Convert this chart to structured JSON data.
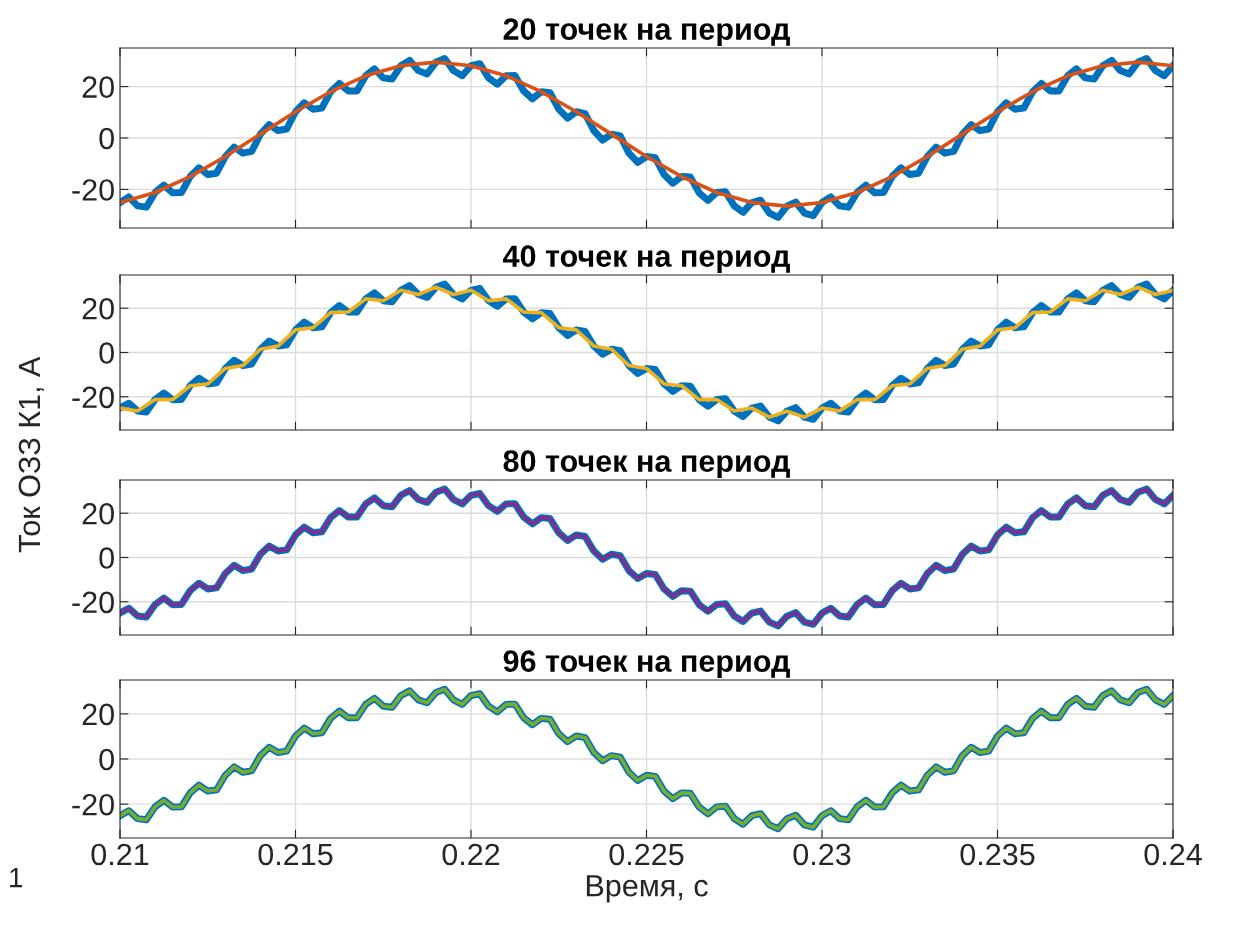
{
  "chart_data": [
    {
      "type": "line",
      "title": "20 точек на период",
      "xlim": [
        0.21,
        0.24
      ],
      "ylim": [
        -35,
        35
      ],
      "yticks": [
        -20,
        0,
        20
      ],
      "tick_labels": "y",
      "grid": true,
      "legend": false,
      "marker": "none",
      "line_style": "solid",
      "x": [
        0.21,
        0.21025,
        0.2105,
        0.21075,
        0.211,
        0.21125,
        0.2115,
        0.21175,
        0.212,
        0.21225,
        0.2125,
        0.21275,
        0.213,
        0.21325,
        0.2135,
        0.21375,
        0.214,
        0.21425,
        0.2145,
        0.21475,
        0.215,
        0.21525,
        0.2155,
        0.21575,
        0.216,
        0.21625,
        0.2165,
        0.21675,
        0.217,
        0.21725,
        0.2175,
        0.21775,
        0.218,
        0.21825,
        0.2185,
        0.21875,
        0.219,
        0.21925,
        0.2195,
        0.21975,
        0.22,
        0.22025,
        0.2205,
        0.22075,
        0.221,
        0.22125,
        0.2215,
        0.22175,
        0.222,
        0.22225,
        0.2225,
        0.22275,
        0.223,
        0.22325,
        0.2235,
        0.22375,
        0.224,
        0.22425,
        0.2245,
        0.22475,
        0.225,
        0.22525,
        0.2255,
        0.22575,
        0.226,
        0.22625,
        0.2265,
        0.22675,
        0.227,
        0.22725,
        0.2275,
        0.22775,
        0.228,
        0.22825,
        0.2285,
        0.22875,
        0.229,
        0.22925,
        0.2295,
        0.22975,
        0.23,
        0.23025,
        0.2305,
        0.23075,
        0.231,
        0.23125,
        0.2315,
        0.23175,
        0.232,
        0.23225,
        0.2325,
        0.23275,
        0.233,
        0.23325,
        0.2335,
        0.23375,
        0.234,
        0.23425,
        0.2345,
        0.23475,
        0.235,
        0.23525,
        0.2355,
        0.23575,
        0.236,
        0.23625,
        0.2365,
        0.23675,
        0.237,
        0.23725,
        0.2375,
        0.23775,
        0.238,
        0.23825,
        0.2385,
        0.23875,
        0.239,
        0.23925,
        0.2395,
        0.23975,
        0.24
      ],
      "series": [
        {
          "color": "#0072bd",
          "values": [
            -25.1,
            -22.9,
            -26.4,
            -26.9,
            -21.2,
            -18.3,
            -21.3,
            -21.2,
            -15,
            -11.6,
            -14.2,
            -13.7,
            -7.2,
            -3.5,
            -5.9,
            -5.2,
            1.5,
            5.2,
            2.9,
            3.5,
            10.2,
            13.7,
            11.2,
            11.6,
            18,
            21.2,
            18.3,
            18.3,
            24.2,
            26.9,
            23.4,
            22.9,
            28.1,
            30.2,
            26.2,
            24.9,
            29.5,
            30.9,
            26.2,
            24.2,
            28.1,
            28.9,
            23.4,
            20.9,
            24.2,
            24.3,
            18.3,
            15.2,
            18,
            17.6,
            11.2,
            7.7,
            10.2,
            9.5,
            2.9,
            -0.8,
            1.5,
            0.8,
            -5.9,
            -9.5,
            -7.2,
            -7.7,
            -14.2,
            -17.6,
            -15,
            -15.2,
            -21.3,
            -24.3,
            -21.2,
            -20.9,
            -26.4,
            -28.9,
            -25.1,
            -24.2,
            -29.2,
            -30.9,
            -26.5,
            -24.9,
            -29.2,
            -30.2,
            -25.1,
            -22.9,
            -26.4,
            -26.9,
            -21.2,
            -18.3,
            -21.3,
            -21.2,
            -15,
            -11.6,
            -14.2,
            -13.7,
            -7.2,
            -3.5,
            -5.9,
            -5.2,
            1.5,
            5.2,
            2.9,
            3.5,
            10.2,
            13.7,
            11.2,
            11.6,
            18,
            21.2,
            18.3,
            18.3,
            24.2,
            26.9,
            23.4,
            22.9,
            28.1,
            30.2,
            26.2,
            24.9,
            29.5,
            30.9,
            26.2,
            24.2,
            28.1
          ]
        },
        {
          "color": "#d95319",
          "x": [
            0.21,
            0.211,
            0.212,
            0.213,
            0.214,
            0.215,
            0.216,
            0.217,
            0.218,
            0.219,
            0.22,
            0.221,
            0.222,
            0.223,
            0.224,
            0.225,
            0.226,
            0.227,
            0.228,
            0.229,
            0.23,
            0.231,
            0.232,
            0.233,
            0.234,
            0.235,
            0.236,
            0.237,
            0.238,
            0.239,
            0.24
          ],
          "values": [
            -25.1,
            -21.2,
            -15,
            -7.2,
            1.5,
            10.2,
            18,
            24.2,
            28.1,
            29.5,
            28.1,
            24.2,
            18,
            10.2,
            1.5,
            -7.2,
            -15,
            -21.2,
            -25.1,
            -26.5,
            -25.1,
            -21.2,
            -15,
            -7.2,
            1.5,
            10.2,
            18,
            24.2,
            28.1,
            29.5,
            28.1
          ]
        }
      ]
    },
    {
      "type": "line",
      "title": "40 точек на период",
      "ylabel": "Ток ОЗЗ К1, А",
      "xlim": [
        0.21,
        0.24
      ],
      "ylim": [
        -35,
        35
      ],
      "yticks": [
        -20,
        0,
        20
      ],
      "tick_labels": "y",
      "grid": true,
      "legend": false,
      "marker": "none",
      "line_style": "solid",
      "x": [
        0.21,
        0.21025,
        0.2105,
        0.21075,
        0.211,
        0.21125,
        0.2115,
        0.21175,
        0.212,
        0.21225,
        0.2125,
        0.21275,
        0.213,
        0.21325,
        0.2135,
        0.21375,
        0.214,
        0.21425,
        0.2145,
        0.21475,
        0.215,
        0.21525,
        0.2155,
        0.21575,
        0.216,
        0.21625,
        0.2165,
        0.21675,
        0.217,
        0.21725,
        0.2175,
        0.21775,
        0.218,
        0.21825,
        0.2185,
        0.21875,
        0.219,
        0.21925,
        0.2195,
        0.21975,
        0.22,
        0.22025,
        0.2205,
        0.22075,
        0.221,
        0.22125,
        0.2215,
        0.22175,
        0.222,
        0.22225,
        0.2225,
        0.22275,
        0.223,
        0.22325,
        0.2235,
        0.22375,
        0.224,
        0.22425,
        0.2245,
        0.22475,
        0.225,
        0.22525,
        0.2255,
        0.22575,
        0.226,
        0.22625,
        0.2265,
        0.22675,
        0.227,
        0.22725,
        0.2275,
        0.22775,
        0.228,
        0.22825,
        0.2285,
        0.22875,
        0.229,
        0.22925,
        0.2295,
        0.22975,
        0.23,
        0.23025,
        0.2305,
        0.23075,
        0.231,
        0.23125,
        0.2315,
        0.23175,
        0.232,
        0.23225,
        0.2325,
        0.23275,
        0.233,
        0.23325,
        0.2335,
        0.23375,
        0.234,
        0.23425,
        0.2345,
        0.23475,
        0.235,
        0.23525,
        0.2355,
        0.23575,
        0.236,
        0.23625,
        0.2365,
        0.23675,
        0.237,
        0.23725,
        0.2375,
        0.23775,
        0.238,
        0.23825,
        0.2385,
        0.23875,
        0.239,
        0.23925,
        0.2395,
        0.23975,
        0.24
      ],
      "series": [
        {
          "color": "#0072bd",
          "values": [
            -25.1,
            -22.9,
            -26.4,
            -26.9,
            -21.2,
            -18.3,
            -21.3,
            -21.2,
            -15,
            -11.6,
            -14.2,
            -13.7,
            -7.2,
            -3.5,
            -5.9,
            -5.2,
            1.5,
            5.2,
            2.9,
            3.5,
            10.2,
            13.7,
            11.2,
            11.6,
            18,
            21.2,
            18.3,
            18.3,
            24.2,
            26.9,
            23.4,
            22.9,
            28.1,
            30.2,
            26.2,
            24.9,
            29.5,
            30.9,
            26.2,
            24.2,
            28.1,
            28.9,
            23.4,
            20.9,
            24.2,
            24.3,
            18.3,
            15.2,
            18,
            17.6,
            11.2,
            7.7,
            10.2,
            9.5,
            2.9,
            -0.8,
            1.5,
            0.8,
            -5.9,
            -9.5,
            -7.2,
            -7.7,
            -14.2,
            -17.6,
            -15,
            -15.2,
            -21.3,
            -24.3,
            -21.2,
            -20.9,
            -26.4,
            -28.9,
            -25.1,
            -24.2,
            -29.2,
            -30.9,
            -26.5,
            -24.9,
            -29.2,
            -30.2,
            -25.1,
            -22.9,
            -26.4,
            -26.9,
            -21.2,
            -18.3,
            -21.3,
            -21.2,
            -15,
            -11.6,
            -14.2,
            -13.7,
            -7.2,
            -3.5,
            -5.9,
            -5.2,
            1.5,
            5.2,
            2.9,
            3.5,
            10.2,
            13.7,
            11.2,
            11.6,
            18,
            21.2,
            18.3,
            18.3,
            24.2,
            26.9,
            23.4,
            22.9,
            28.1,
            30.2,
            26.2,
            24.9,
            29.5,
            30.9,
            26.2,
            24.2,
            28.1
          ]
        },
        {
          "color": "#edb120",
          "x": [
            0.21,
            0.2105,
            0.211,
            0.2115,
            0.212,
            0.2125,
            0.213,
            0.2135,
            0.214,
            0.2145,
            0.215,
            0.2155,
            0.216,
            0.2165,
            0.217,
            0.2175,
            0.218,
            0.2185,
            0.219,
            0.2195,
            0.22,
            0.2205,
            0.221,
            0.2215,
            0.222,
            0.2225,
            0.223,
            0.2235,
            0.224,
            0.2245,
            0.225,
            0.2255,
            0.226,
            0.2265,
            0.227,
            0.2275,
            0.228,
            0.2285,
            0.229,
            0.2295,
            0.23,
            0.2305,
            0.231,
            0.2315,
            0.232,
            0.2325,
            0.233,
            0.2335,
            0.234,
            0.2345,
            0.235,
            0.2355,
            0.236,
            0.2365,
            0.237,
            0.2375,
            0.238,
            0.2385,
            0.239,
            0.2395,
            0.24
          ],
          "values": [
            -25.1,
            -26.4,
            -21.2,
            -21.3,
            -15,
            -14.2,
            -7.2,
            -5.9,
            1.5,
            2.9,
            10.2,
            11.2,
            18,
            18.3,
            24.2,
            23.4,
            28.1,
            26.2,
            29.5,
            26.2,
            28.1,
            23.4,
            24.2,
            18.3,
            18,
            11.2,
            10.2,
            2.9,
            1.5,
            -5.9,
            -7.2,
            -14.2,
            -15,
            -21.3,
            -21.2,
            -26.4,
            -25.1,
            -29.2,
            -26.5,
            -29.2,
            -25.1,
            -26.4,
            -21.2,
            -21.3,
            -15,
            -14.2,
            -7.2,
            -5.9,
            1.5,
            2.9,
            10.2,
            11.2,
            18,
            18.3,
            24.2,
            23.4,
            28.1,
            26.2,
            29.5,
            26.2,
            28.1
          ]
        }
      ]
    },
    {
      "type": "line",
      "title": "80 точек на период",
      "xlim": [
        0.21,
        0.24
      ],
      "ylim": [
        -35,
        35
      ],
      "yticks": [
        -20,
        0,
        20
      ],
      "tick_labels": "y",
      "grid": true,
      "legend": false,
      "marker": "none",
      "line_style": "solid",
      "x": [
        0.21,
        0.21025,
        0.2105,
        0.21075,
        0.211,
        0.21125,
        0.2115,
        0.21175,
        0.212,
        0.21225,
        0.2125,
        0.21275,
        0.213,
        0.21325,
        0.2135,
        0.21375,
        0.214,
        0.21425,
        0.2145,
        0.21475,
        0.215,
        0.21525,
        0.2155,
        0.21575,
        0.216,
        0.21625,
        0.2165,
        0.21675,
        0.217,
        0.21725,
        0.2175,
        0.21775,
        0.218,
        0.21825,
        0.2185,
        0.21875,
        0.219,
        0.21925,
        0.2195,
        0.21975,
        0.22,
        0.22025,
        0.2205,
        0.22075,
        0.221,
        0.22125,
        0.2215,
        0.22175,
        0.222,
        0.22225,
        0.2225,
        0.22275,
        0.223,
        0.22325,
        0.2235,
        0.22375,
        0.224,
        0.22425,
        0.2245,
        0.22475,
        0.225,
        0.22525,
        0.2255,
        0.22575,
        0.226,
        0.22625,
        0.2265,
        0.22675,
        0.227,
        0.22725,
        0.2275,
        0.22775,
        0.228,
        0.22825,
        0.2285,
        0.22875,
        0.229,
        0.22925,
        0.2295,
        0.22975,
        0.23,
        0.23025,
        0.2305,
        0.23075,
        0.231,
        0.23125,
        0.2315,
        0.23175,
        0.232,
        0.23225,
        0.2325,
        0.23275,
        0.233,
        0.23325,
        0.2335,
        0.23375,
        0.234,
        0.23425,
        0.2345,
        0.23475,
        0.235,
        0.23525,
        0.2355,
        0.23575,
        0.236,
        0.23625,
        0.2365,
        0.23675,
        0.237,
        0.23725,
        0.2375,
        0.23775,
        0.238,
        0.23825,
        0.2385,
        0.23875,
        0.239,
        0.23925,
        0.2395,
        0.23975,
        0.24
      ],
      "series": [
        {
          "color": "#0072bd",
          "values": [
            -25.1,
            -22.9,
            -26.4,
            -26.9,
            -21.2,
            -18.3,
            -21.3,
            -21.2,
            -15,
            -11.6,
            -14.2,
            -13.7,
            -7.2,
            -3.5,
            -5.9,
            -5.2,
            1.5,
            5.2,
            2.9,
            3.5,
            10.2,
            13.7,
            11.2,
            11.6,
            18,
            21.2,
            18.3,
            18.3,
            24.2,
            26.9,
            23.4,
            22.9,
            28.1,
            30.2,
            26.2,
            24.9,
            29.5,
            30.9,
            26.2,
            24.2,
            28.1,
            28.9,
            23.4,
            20.9,
            24.2,
            24.3,
            18.3,
            15.2,
            18,
            17.6,
            11.2,
            7.7,
            10.2,
            9.5,
            2.9,
            -0.8,
            1.5,
            0.8,
            -5.9,
            -9.5,
            -7.2,
            -7.7,
            -14.2,
            -17.6,
            -15,
            -15.2,
            -21.3,
            -24.3,
            -21.2,
            -20.9,
            -26.4,
            -28.9,
            -25.1,
            -24.2,
            -29.2,
            -30.9,
            -26.5,
            -24.9,
            -29.2,
            -30.2,
            -25.1,
            -22.9,
            -26.4,
            -26.9,
            -21.2,
            -18.3,
            -21.3,
            -21.2,
            -15,
            -11.6,
            -14.2,
            -13.7,
            -7.2,
            -3.5,
            -5.9,
            -5.2,
            1.5,
            5.2,
            2.9,
            3.5,
            10.2,
            13.7,
            11.2,
            11.6,
            18,
            21.2,
            18.3,
            18.3,
            24.2,
            26.9,
            23.4,
            22.9,
            28.1,
            30.2,
            26.2,
            24.9,
            29.5,
            30.9,
            26.2,
            24.2,
            28.1
          ]
        },
        {
          "color": "#7e2f8e",
          "values": [
            -25.1,
            -22.9,
            -26.4,
            -26.9,
            -21.2,
            -18.3,
            -21.3,
            -21.2,
            -15,
            -11.6,
            -14.2,
            -13.7,
            -7.2,
            -3.5,
            -5.9,
            -5.2,
            1.5,
            5.2,
            2.9,
            3.5,
            10.2,
            13.7,
            11.2,
            11.6,
            18,
            21.2,
            18.3,
            18.3,
            24.2,
            26.9,
            23.4,
            22.9,
            28.1,
            30.2,
            26.2,
            24.9,
            29.5,
            30.9,
            26.2,
            24.2,
            28.1,
            28.9,
            23.4,
            20.9,
            24.2,
            24.3,
            18.3,
            15.2,
            18,
            17.6,
            11.2,
            7.7,
            10.2,
            9.5,
            2.9,
            -0.8,
            1.5,
            0.8,
            -5.9,
            -9.5,
            -7.2,
            -7.7,
            -14.2,
            -17.6,
            -15,
            -15.2,
            -21.3,
            -24.3,
            -21.2,
            -20.9,
            -26.4,
            -28.9,
            -25.1,
            -24.2,
            -29.2,
            -30.9,
            -26.5,
            -24.9,
            -29.2,
            -30.2,
            -25.1,
            -22.9,
            -26.4,
            -26.9,
            -21.2,
            -18.3,
            -21.3,
            -21.2,
            -15,
            -11.6,
            -14.2,
            -13.7,
            -7.2,
            -3.5,
            -5.9,
            -5.2,
            1.5,
            5.2,
            2.9,
            3.5,
            10.2,
            13.7,
            11.2,
            11.6,
            18,
            21.2,
            18.3,
            18.3,
            24.2,
            26.9,
            23.4,
            22.9,
            28.1,
            30.2,
            26.2,
            24.9,
            29.5,
            30.9,
            26.2,
            24.2,
            28.1
          ]
        }
      ]
    },
    {
      "type": "line",
      "title": "96 точек на период",
      "xlabel": "Время, с",
      "annotations": [
        "1"
      ],
      "xlim": [
        0.21,
        0.24
      ],
      "xticks": [
        0.21,
        0.215,
        0.22,
        0.225,
        0.23,
        0.235,
        0.24
      ],
      "ylim": [
        -35,
        35
      ],
      "yticks": [
        -20,
        0,
        20
      ],
      "grid": true,
      "legend": false,
      "marker": "none",
      "line_style": "solid",
      "x": [
        0.21,
        0.21025,
        0.2105,
        0.21075,
        0.211,
        0.21125,
        0.2115,
        0.21175,
        0.212,
        0.21225,
        0.2125,
        0.21275,
        0.213,
        0.21325,
        0.2135,
        0.21375,
        0.214,
        0.21425,
        0.2145,
        0.21475,
        0.215,
        0.21525,
        0.2155,
        0.21575,
        0.216,
        0.21625,
        0.2165,
        0.21675,
        0.217,
        0.21725,
        0.2175,
        0.21775,
        0.218,
        0.21825,
        0.2185,
        0.21875,
        0.219,
        0.21925,
        0.2195,
        0.21975,
        0.22,
        0.22025,
        0.2205,
        0.22075,
        0.221,
        0.22125,
        0.2215,
        0.22175,
        0.222,
        0.22225,
        0.2225,
        0.22275,
        0.223,
        0.22325,
        0.2235,
        0.22375,
        0.224,
        0.22425,
        0.2245,
        0.22475,
        0.225,
        0.22525,
        0.2255,
        0.22575,
        0.226,
        0.22625,
        0.2265,
        0.22675,
        0.227,
        0.22725,
        0.2275,
        0.22775,
        0.228,
        0.22825,
        0.2285,
        0.22875,
        0.229,
        0.22925,
        0.2295,
        0.22975,
        0.23,
        0.23025,
        0.2305,
        0.23075,
        0.231,
        0.23125,
        0.2315,
        0.23175,
        0.232,
        0.23225,
        0.2325,
        0.23275,
        0.233,
        0.23325,
        0.2335,
        0.23375,
        0.234,
        0.23425,
        0.2345,
        0.23475,
        0.235,
        0.23525,
        0.2355,
        0.23575,
        0.236,
        0.23625,
        0.2365,
        0.23675,
        0.237,
        0.23725,
        0.2375,
        0.23775,
        0.238,
        0.23825,
        0.2385,
        0.23875,
        0.239,
        0.23925,
        0.2395,
        0.23975,
        0.24
      ],
      "series": [
        {
          "color": "#0072bd",
          "values": [
            -25.1,
            -22.9,
            -26.4,
            -26.9,
            -21.2,
            -18.3,
            -21.3,
            -21.2,
            -15,
            -11.6,
            -14.2,
            -13.7,
            -7.2,
            -3.5,
            -5.9,
            -5.2,
            1.5,
            5.2,
            2.9,
            3.5,
            10.2,
            13.7,
            11.2,
            11.6,
            18,
            21.2,
            18.3,
            18.3,
            24.2,
            26.9,
            23.4,
            22.9,
            28.1,
            30.2,
            26.2,
            24.9,
            29.5,
            30.9,
            26.2,
            24.2,
            28.1,
            28.9,
            23.4,
            20.9,
            24.2,
            24.3,
            18.3,
            15.2,
            18,
            17.6,
            11.2,
            7.7,
            10.2,
            9.5,
            2.9,
            -0.8,
            1.5,
            0.8,
            -5.9,
            -9.5,
            -7.2,
            -7.7,
            -14.2,
            -17.6,
            -15,
            -15.2,
            -21.3,
            -24.3,
            -21.2,
            -20.9,
            -26.4,
            -28.9,
            -25.1,
            -24.2,
            -29.2,
            -30.9,
            -26.5,
            -24.9,
            -29.2,
            -30.2,
            -25.1,
            -22.9,
            -26.4,
            -26.9,
            -21.2,
            -18.3,
            -21.3,
            -21.2,
            -15,
            -11.6,
            -14.2,
            -13.7,
            -7.2,
            -3.5,
            -5.9,
            -5.2,
            1.5,
            5.2,
            2.9,
            3.5,
            10.2,
            13.7,
            11.2,
            11.6,
            18,
            21.2,
            18.3,
            18.3,
            24.2,
            26.9,
            23.4,
            22.9,
            28.1,
            30.2,
            26.2,
            24.9,
            29.5,
            30.9,
            26.2,
            24.2,
            28.1
          ]
        },
        {
          "color": "#77ac30",
          "values": [
            -25.1,
            -22.9,
            -26.4,
            -26.9,
            -21.2,
            -18.3,
            -21.3,
            -21.2,
            -15,
            -11.6,
            -14.2,
            -13.7,
            -7.2,
            -3.5,
            -5.9,
            -5.2,
            1.5,
            5.2,
            2.9,
            3.5,
            10.2,
            13.7,
            11.2,
            11.6,
            18,
            21.2,
            18.3,
            18.3,
            24.2,
            26.9,
            23.4,
            22.9,
            28.1,
            30.2,
            26.2,
            24.9,
            29.5,
            30.9,
            26.2,
            24.2,
            28.1,
            28.9,
            23.4,
            20.9,
            24.2,
            24.3,
            18.3,
            15.2,
            18,
            17.6,
            11.2,
            7.7,
            10.2,
            9.5,
            2.9,
            -0.8,
            1.5,
            0.8,
            -5.9,
            -9.5,
            -7.2,
            -7.7,
            -14.2,
            -17.6,
            -15,
            -15.2,
            -21.3,
            -24.3,
            -21.2,
            -20.9,
            -26.4,
            -28.9,
            -25.1,
            -24.2,
            -29.2,
            -30.9,
            -26.5,
            -24.9,
            -29.2,
            -30.2,
            -25.1,
            -22.9,
            -26.4,
            -26.9,
            -21.2,
            -18.3,
            -21.3,
            -21.2,
            -15,
            -11.6,
            -14.2,
            -13.7,
            -7.2,
            -3.5,
            -5.9,
            -5.2,
            1.5,
            5.2,
            2.9,
            3.5,
            10.2,
            13.7,
            11.2,
            11.6,
            18,
            21.2,
            18.3,
            18.3,
            24.2,
            26.9,
            23.4,
            22.9,
            28.1,
            30.2,
            26.2,
            24.9,
            29.5,
            30.9,
            26.2,
            24.2,
            28.1
          ]
        }
      ]
    }
  ]
}
